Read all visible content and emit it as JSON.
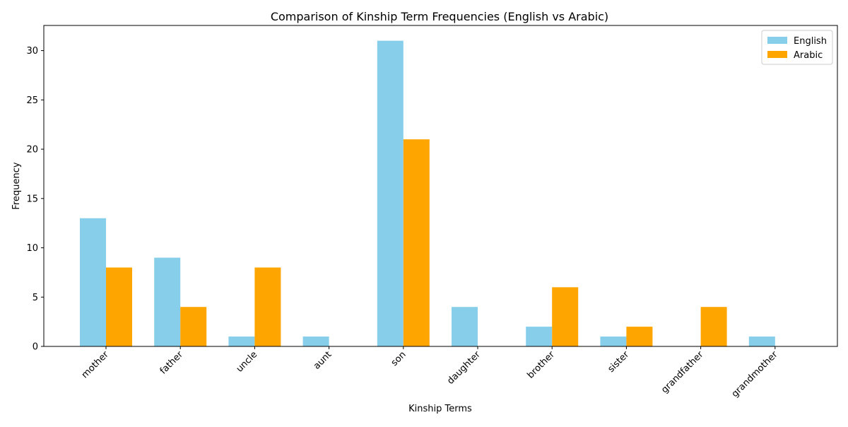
{
  "chart_data": {
    "type": "bar",
    "title": "Comparison of Kinship Term Frequencies (English vs Arabic)",
    "xlabel": "Kinship Terms",
    "ylabel": "Frequency",
    "categories": [
      "mother",
      "father",
      "uncle",
      "aunt",
      "son",
      "daughter",
      "brother",
      "sister",
      "grandfather",
      "grandmother"
    ],
    "series": [
      {
        "name": "English",
        "color": "#87CEEB",
        "values": [
          13,
          9,
          1,
          1,
          31,
          4,
          2,
          1,
          0,
          1
        ]
      },
      {
        "name": "Arabic",
        "color": "#FFA500",
        "values": [
          8,
          4,
          8,
          0,
          21,
          0,
          6,
          2,
          4,
          0
        ]
      }
    ],
    "ylim": [
      0,
      32.55
    ],
    "yticks": [
      0,
      5,
      10,
      15,
      20,
      25,
      30
    ],
    "grid": false,
    "legend_position": "top-right"
  }
}
